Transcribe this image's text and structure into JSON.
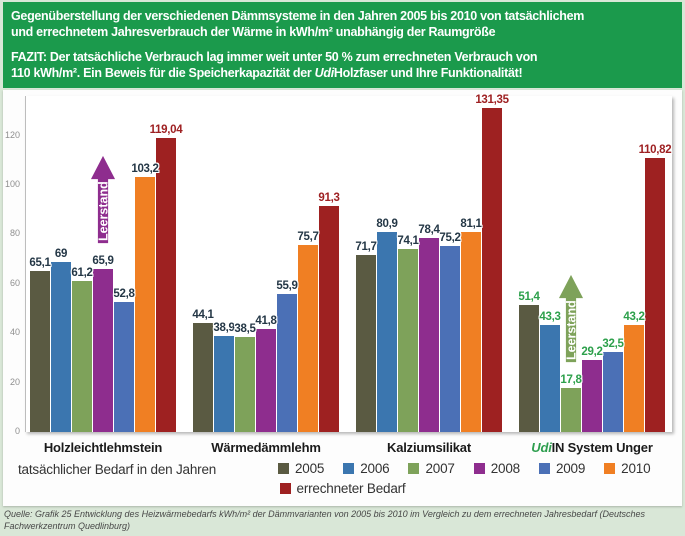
{
  "header": {
    "title_line1": "Gegenüberstellung der verschiedenen Dämmsysteme in den Jahren 2005 bis 2010 von tatsächlichem",
    "title_line2": "und errechnetem Jahresverbrauch der Wärme in kWh/m² unabhängig der Raumgröße",
    "fazit_line1": "FAZIT: Der tatsächliche Verbrauch lag immer weit unter 50 % zum errechneten Verbrauch von",
    "fazit_line2_pre": "110 kWh/m². Ein Beweis für die Speicherkapazität der ",
    "fazit_line2_italic": "Udi",
    "fazit_line2_post": "Holzfaser und Ihre Funktionalität!"
  },
  "chart_data": {
    "type": "bar",
    "unit": "kWh/m²",
    "categories": [
      "Holzleichtlehmstein",
      "Wärmedämmlehm",
      "Kalziumsilikat",
      "UdiIN System Unger"
    ],
    "categories_display": [
      {
        "prefix_italic": "",
        "text": "Holzleichtlehmstein"
      },
      {
        "prefix_italic": "",
        "text": "Wärmedämmlehm"
      },
      {
        "prefix_italic": "",
        "text": "Kalziumsilikat"
      },
      {
        "prefix_italic": "Udi",
        "text": "IN System Unger"
      }
    ],
    "series": [
      {
        "name": "2005",
        "color": "#5a5a42",
        "values": [
          65.1,
          44.1,
          71.7,
          51.4
        ]
      },
      {
        "name": "2006",
        "color": "#3b76af",
        "values": [
          69,
          38.9,
          80.9,
          43.3
        ]
      },
      {
        "name": "2007",
        "color": "#7ea25a",
        "values": [
          61.2,
          38.5,
          74.1,
          17.8
        ]
      },
      {
        "name": "2008",
        "color": "#8e2d8e",
        "values": [
          65.9,
          41.8,
          78.4,
          29.2
        ]
      },
      {
        "name": "2009",
        "color": "#4b70b6",
        "values": [
          52.8,
          55.9,
          75.2,
          32.5
        ]
      },
      {
        "name": "2010",
        "color": "#f07f23",
        "values": [
          103.2,
          75.7,
          81.1,
          43.2
        ]
      },
      {
        "name": "errechneter Bedarf",
        "color": "#9e2121",
        "values": [
          119.04,
          91.3,
          131.35,
          110.82
        ]
      }
    ],
    "yticks": [
      0,
      20,
      40,
      60,
      80,
      100,
      120
    ],
    "ylim": [
      0,
      136
    ],
    "grid": false,
    "legend_position": "bottom",
    "annotations": [
      {
        "text": "Leerstand",
        "category_index": 0,
        "series_index": 3,
        "color": "#8e2d8e"
      },
      {
        "text": "Leerstand",
        "category_index": 3,
        "series_index": 2,
        "color": "#7ea25a"
      }
    ],
    "value_label_colors": {
      "default": "#243746",
      "last_series": "#9e2022",
      "category_3": "#2da04b"
    }
  },
  "legend": {
    "lead_label": "tatsächlicher Bedarf in den Jahren"
  },
  "source": {
    "text": "Quelle: Grafik 25 Entwicklung des Heizwärmebedarfs kWh/m² der Dämmvarianten von 2005 bis 2010 im Vergleich zu dem errechneten Jahresbedarf (Deutsches Fachwerkzentrum Quedlinburg)"
  },
  "theme": {
    "header_background": "#1b9a4c",
    "header_text": "#ffffff",
    "page_background": "#d9e7d7",
    "card_background": "#fdfdfd",
    "udi_green": "#2e9e4f",
    "tick_color": "#8f8f8f"
  }
}
